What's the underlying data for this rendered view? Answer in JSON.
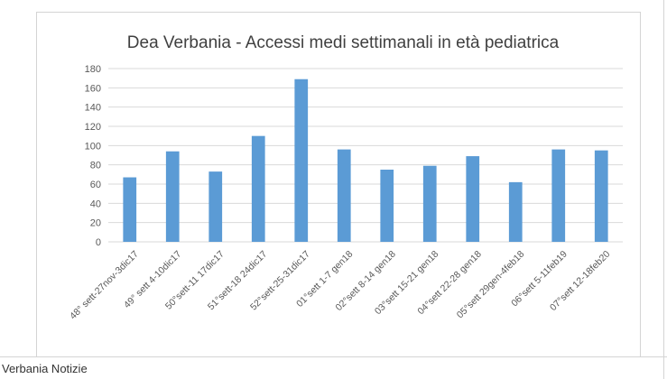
{
  "footer": {
    "caption": "Verbania Notizie"
  },
  "colors": {
    "bar": "#5b9bd5",
    "grid": "#d9d9d9",
    "axis_text": "#595959",
    "title": "#404040"
  },
  "chart_data": {
    "type": "bar",
    "title": "Dea Verbania - Accessi medi settimanali in età pediatrica",
    "xlabel": "",
    "ylabel": "",
    "ylim": [
      0,
      180
    ],
    "yticks": [
      0,
      20,
      40,
      60,
      80,
      100,
      120,
      140,
      160,
      180
    ],
    "grid": true,
    "legend": "none",
    "categories": [
      "48° sett-27nov-3dic17",
      "49° sett 4-10dic17",
      "50°sett-11 17dic17",
      "51°sett-18 24dic17",
      "52°sett-25-31dic17",
      "01°sett 1-7 gen18",
      "02°sett 8-14 gen18",
      "03°sett 15-21 gen18",
      "04°sett 22-28 gen18",
      "05°sett 29gen-4feb18",
      "06°sett 5-11feb19",
      "07°sett 12-18feb20"
    ],
    "values": [
      67,
      94,
      73,
      110,
      169,
      96,
      75,
      79,
      89,
      62,
      96,
      95
    ]
  }
}
